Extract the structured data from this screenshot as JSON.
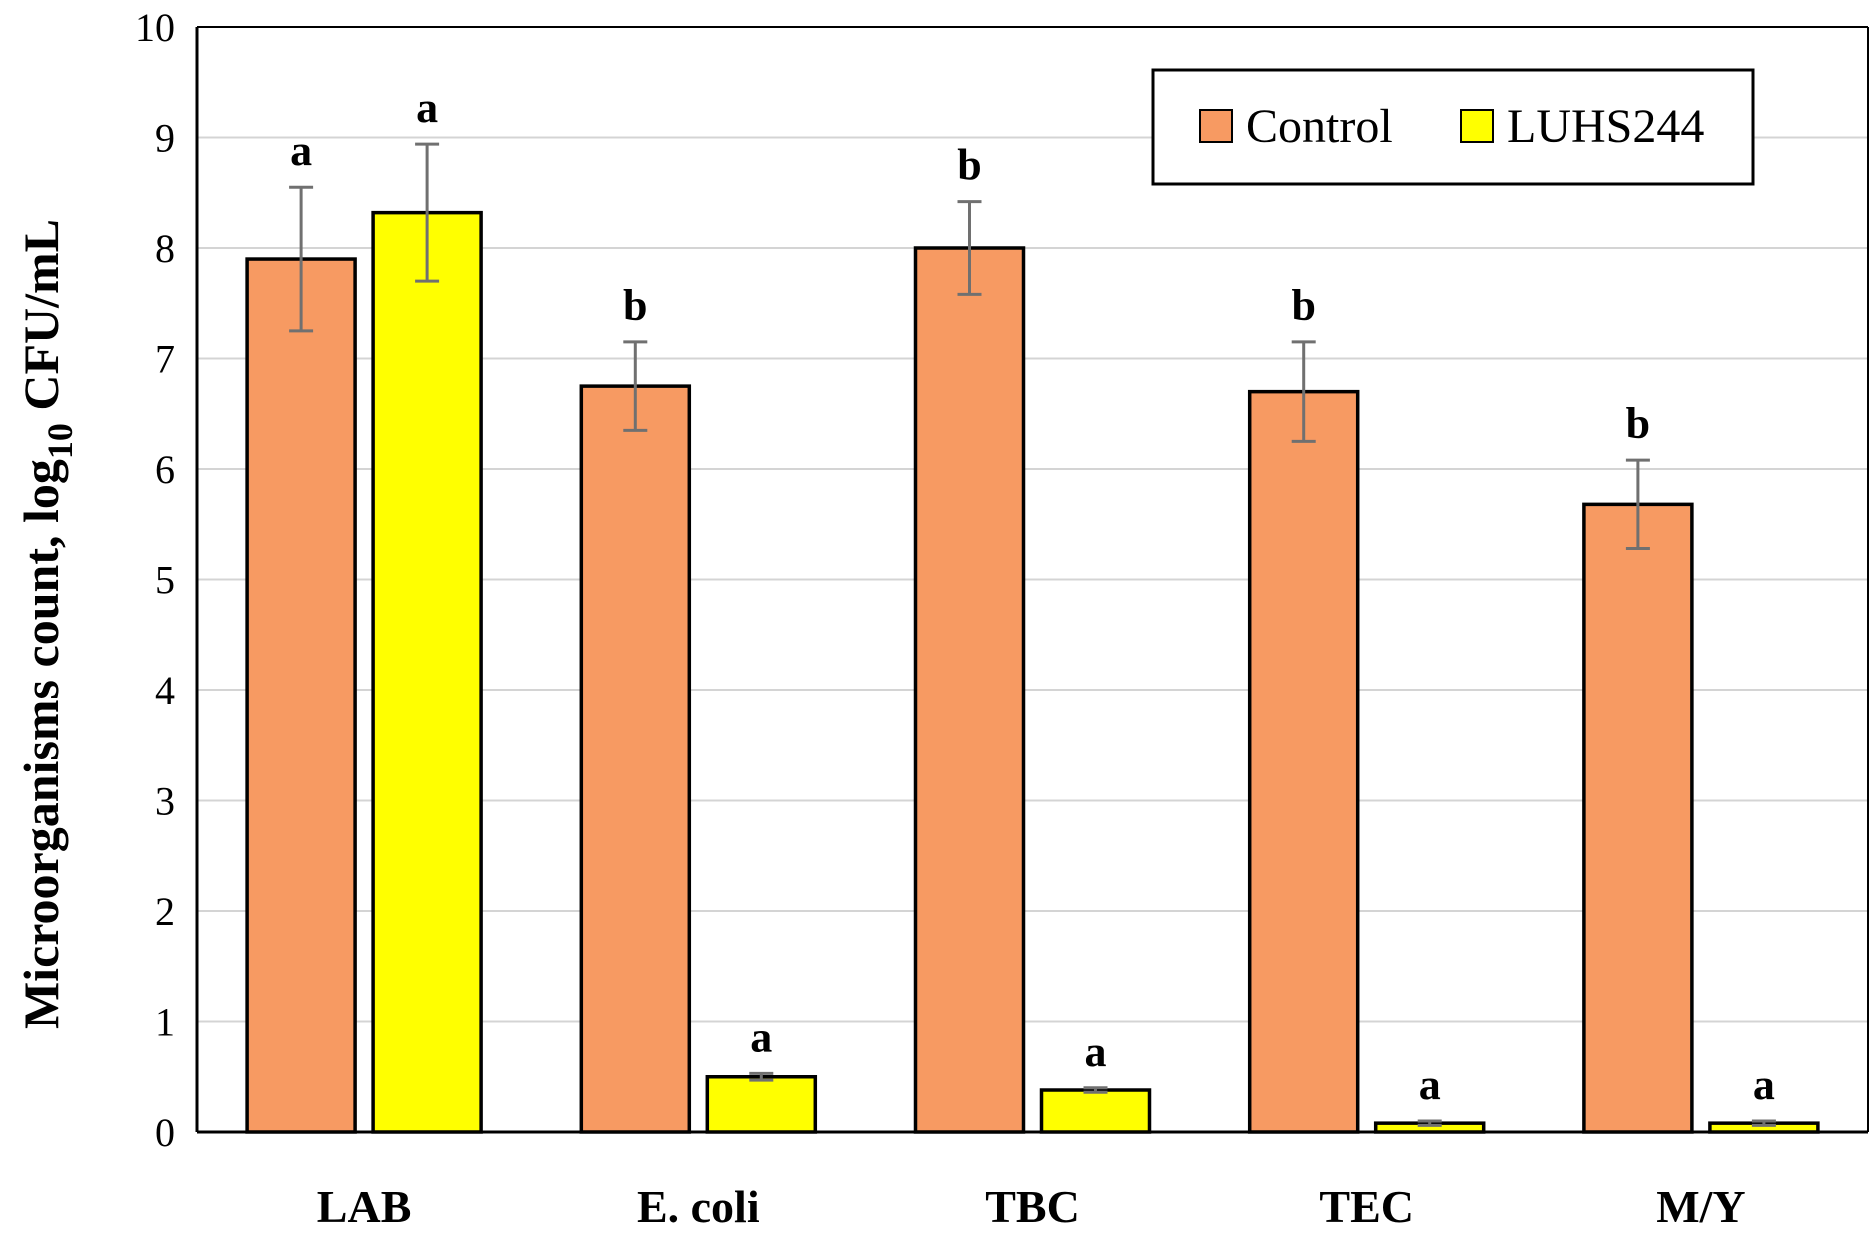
{
  "chart_data": {
    "type": "bar",
    "title": "",
    "xlabel": "",
    "ylabel": "Microorganisms count, log10 CFU/mL",
    "ylabel_parts": {
      "pre": "Microorganisms count, log",
      "sub": "10",
      "post": " CFU/mL"
    },
    "ylim": [
      0,
      10
    ],
    "yticks": [
      0,
      1,
      2,
      3,
      4,
      5,
      6,
      7,
      8,
      9,
      10
    ],
    "grid": true,
    "legend_position": "top-right",
    "categories": [
      "LAB",
      "E. coli",
      "TBC",
      "TEC",
      "M/Y"
    ],
    "series": [
      {
        "name": "Control",
        "color": "#F79A62",
        "values": [
          7.9,
          6.75,
          8.0,
          6.7,
          5.68
        ],
        "errors": [
          0.65,
          0.4,
          0.42,
          0.45,
          0.4
        ],
        "letters": [
          "a",
          "b",
          "b",
          "b",
          "b"
        ]
      },
      {
        "name": "LUHS244",
        "color": "#FFFF00",
        "values": [
          8.32,
          0.5,
          0.38,
          0.08,
          0.08
        ],
        "errors": [
          0.62,
          0.03,
          0.02,
          0.02,
          0.02
        ],
        "letters": [
          "a",
          "a",
          "a",
          "a",
          "a"
        ]
      }
    ]
  }
}
